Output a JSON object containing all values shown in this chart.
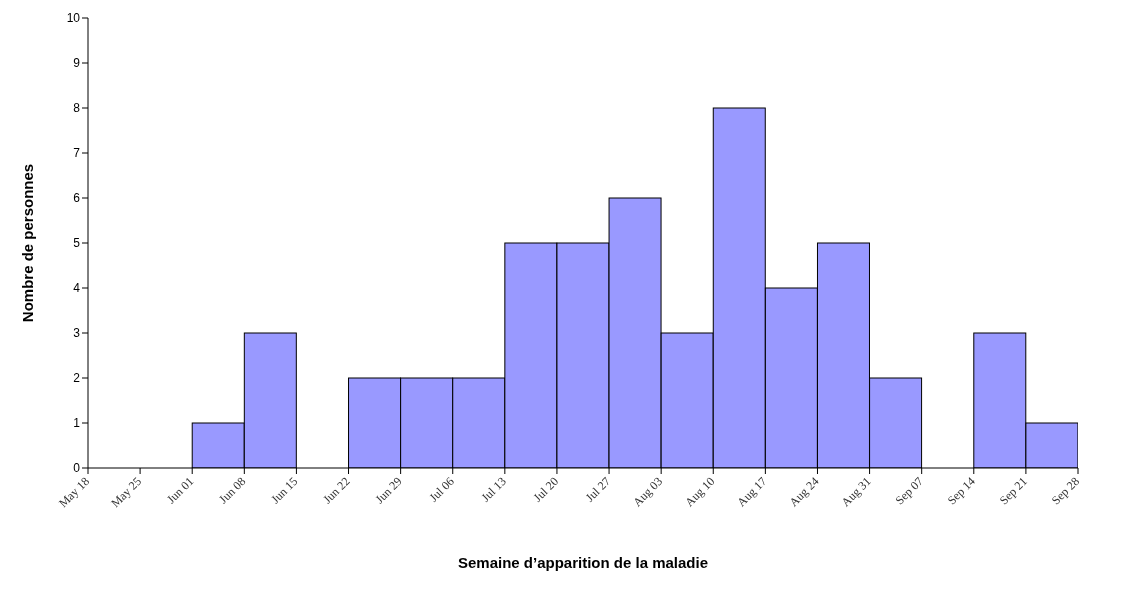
{
  "chart_data": {
    "type": "histogram",
    "xlabel": "Semaine d’apparition de la maladie",
    "ylabel": "Nombre de personnes",
    "bins": [
      "--05-18",
      "--05-25",
      "--06-01",
      "--06-08",
      "--06-15",
      "--06-22",
      "--06-29",
      "--07-06",
      "--07-13",
      "--07-20",
      "--07-27",
      "--08-03",
      "--08-10",
      "--08-17",
      "--08-24",
      "--08-31",
      "--09-07",
      "--09-14",
      "--09-21",
      "--09-28"
    ],
    "values": [
      0,
      0,
      1,
      3,
      0,
      2,
      2,
      2,
      5,
      5,
      6,
      3,
      8,
      4,
      5,
      2,
      0,
      3,
      1
    ],
    "color": "#9999ff",
    "xlim": [
      "--05-18",
      "--09-28"
    ],
    "xticks": [
      {
        "value": "--05-18",
        "label": "May 18"
      },
      {
        "value": "--05-25",
        "label": "May 25"
      },
      {
        "value": "--06-01",
        "label": "Jun 01"
      },
      {
        "value": "--06-08",
        "label": "Jun 08"
      },
      {
        "value": "--06-15",
        "label": "Jun 15"
      },
      {
        "value": "--06-22",
        "label": "Jun 22"
      },
      {
        "value": "--06-29",
        "label": "Jun 29"
      },
      {
        "value": "--07-06",
        "label": "Jul 06"
      },
      {
        "value": "--07-13",
        "label": "Jul 13"
      },
      {
        "value": "--07-20",
        "label": "Jul 20"
      },
      {
        "value": "--07-27",
        "label": "Jul 27"
      },
      {
        "value": "--08-03",
        "label": "Aug 03"
      },
      {
        "value": "--08-10",
        "label": "Aug 10"
      },
      {
        "value": "--08-17",
        "label": "Aug 17"
      },
      {
        "value": "--08-24",
        "label": "Aug 24"
      },
      {
        "value": "--08-31",
        "label": "Aug 31"
      },
      {
        "value": "--09-07",
        "label": "Sep 07"
      },
      {
        "value": "--09-14",
        "label": "Sep 14"
      },
      {
        "value": "--09-21",
        "label": "Sep 21"
      },
      {
        "value": "--09-28",
        "label": "Sep 28"
      }
    ],
    "ylim": [
      0,
      10
    ],
    "yticks": [
      0,
      1,
      2,
      3,
      4,
      5,
      6,
      7,
      8,
      9,
      10
    ]
  }
}
